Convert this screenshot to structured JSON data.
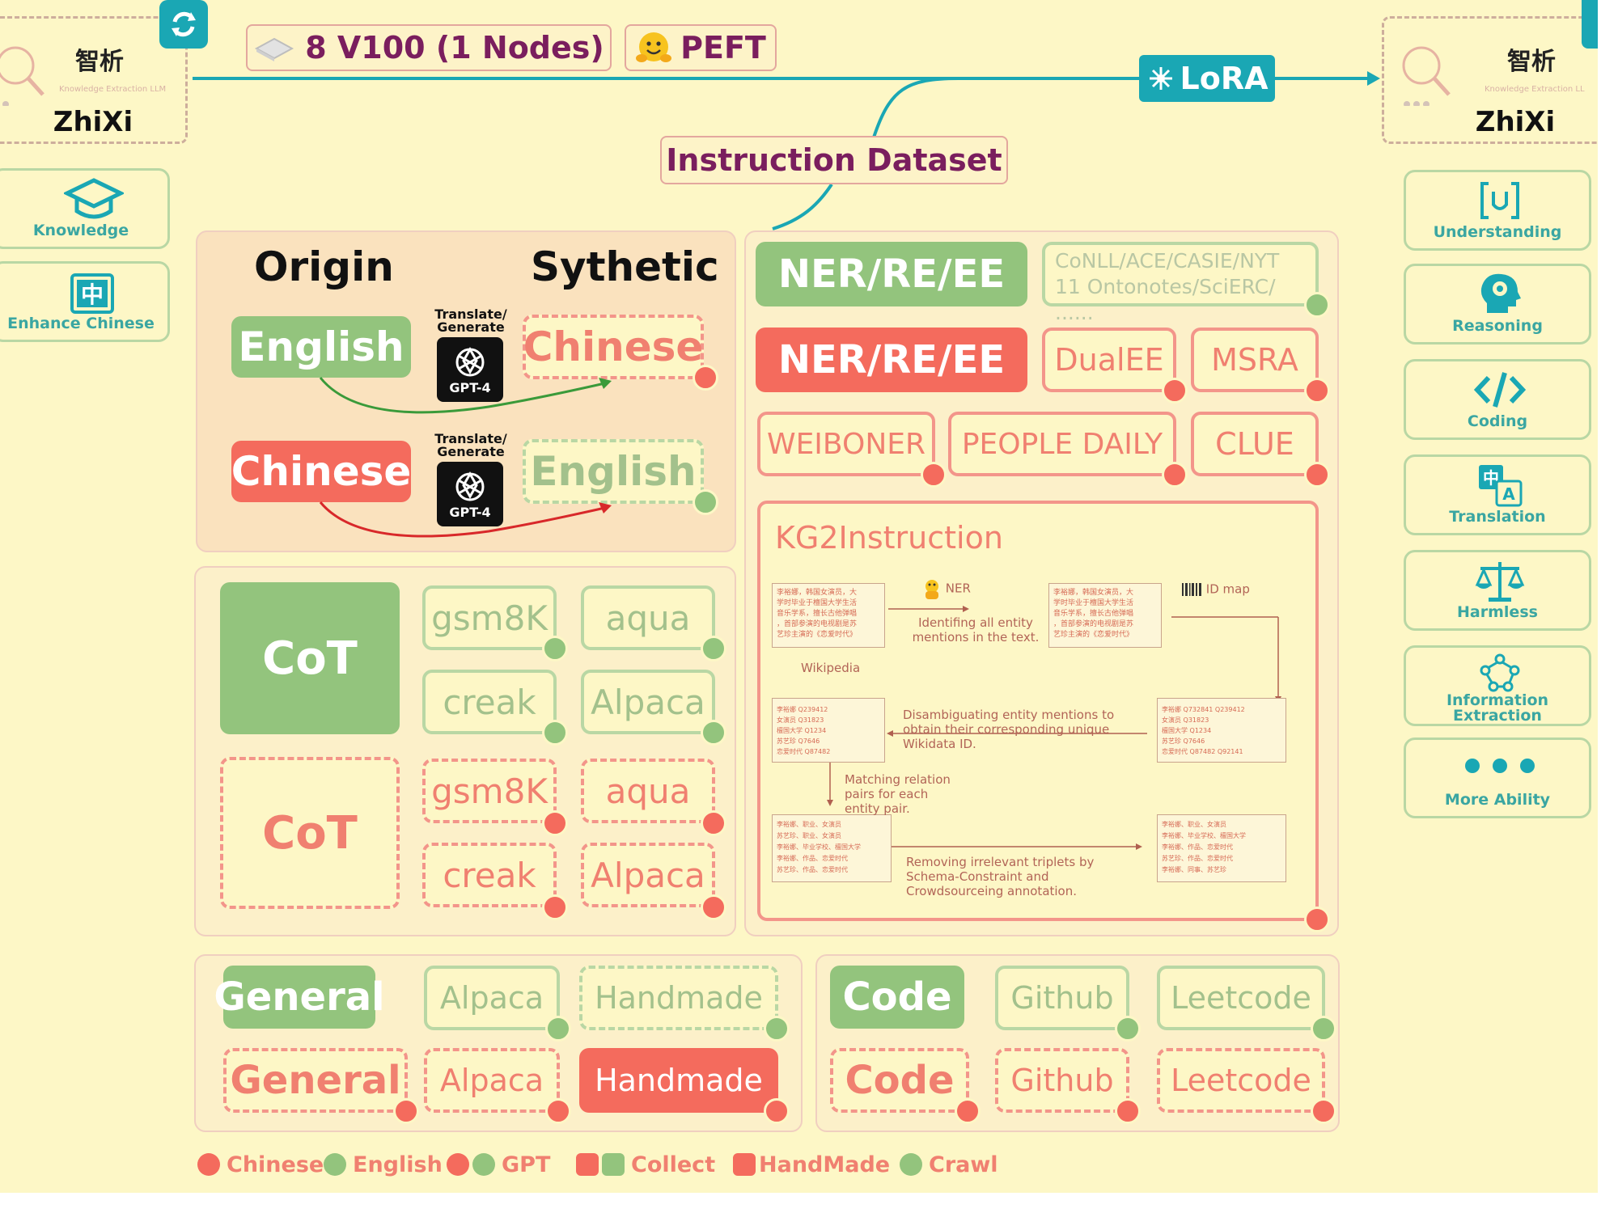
{
  "header": {
    "hardware": "8 V100 (1 Nodes)",
    "peft": "PEFT",
    "lora": "LoRA",
    "instruction_dataset": "Instruction Dataset"
  },
  "zhixi": {
    "cn": "智析",
    "sub": "Knowledge Extraction LLM",
    "sub_right": "Knowledge Extraction LL",
    "name": "ZhiXi"
  },
  "left_abilities": [
    "Knowledge",
    "Enhance Chinese"
  ],
  "right_abilities": [
    "Understanding",
    "Reasoning",
    "Coding",
    "Translation",
    "Harmless",
    "Information Extraction",
    "More Ability"
  ],
  "lang": {
    "origin": "Origin",
    "synthetic": "Sythetic",
    "english": "English",
    "chinese": "Chinese",
    "translate": "Translate/ Generate",
    "gpt4": "GPT-4"
  },
  "cot": {
    "label": "CoT",
    "datasets": [
      "gsm8K",
      "aqua",
      "creak",
      "Alpaca"
    ]
  },
  "ner": {
    "label": "NER/RE/EE",
    "english_list": "CoNLL/ACE/CASIE/NYT 11 Ontonotes/SciERC/ ......",
    "chinese_datasets": [
      "DualEE",
      "MSRA",
      "WEIBONER",
      "PEOPLE DAILY",
      "CLUE"
    ]
  },
  "kg2": {
    "title": "KG2Instruction",
    "ner_tag": "NER",
    "id_map": "ID map",
    "identify": "Identifing all entity mentions in the text.",
    "wikipedia": "Wikipedia",
    "disambiguate": "Disambiguating entity mentions to obtain their corresponding unique Wikidata ID.",
    "matching": "Matching relation pairs for each entity pair.",
    "removing": "Removing irrelevant triplets by Schema-Constraint and Crowdsourceing annotation.",
    "passage_1": "李裕娜，韩国女演员，大",
    "passage_2": "学时毕业于檀国大学生活",
    "passage_3": "音乐学系，擅长古他弹唱",
    "passage_4": "，首部参演的电视剧是苏",
    "passage_5": "艺珍主演的《恋爱时代》",
    "ids_left": [
      "李裕娜 Q239412",
      "女演员 Q31823",
      "檀国大学 Q1234",
      "苏艺珍 Q7646",
      "恋爱时代 Q87482"
    ],
    "ids_right": [
      "李裕娜 Q732841 Q239412",
      "女演员 Q31823",
      "檀国大学 Q1234",
      "苏艺珍 Q7646",
      "恋爱时代 Q87482 Q92141"
    ],
    "triples_left": [
      "李裕娜、职业、女演员",
      "苏艺珍、职业、女演员",
      "李裕娜、毕业学校、檀国大学",
      "李裕娜、作品、恋爱时代",
      "苏艺珍、作品、恋爱时代"
    ],
    "triples_right": [
      "李裕娜、职业、女演员",
      "李裕娜、毕业学校、檀国大学",
      "李裕娜、作品、恋爱时代",
      "苏艺珍、作品、恋爱时代",
      "李裕娜、同事、苏艺珍"
    ]
  },
  "general": {
    "label": "General",
    "datasets": [
      "Alpaca",
      "Handmade"
    ]
  },
  "code": {
    "label": "Code",
    "datasets": [
      "Github",
      "Leetcode"
    ]
  },
  "legend": {
    "chinese": "Chinese",
    "english": "English",
    "gpt": "GPT",
    "collect": "Collect",
    "handmade": "HandMade",
    "crawl": "Crawl"
  },
  "colors": {
    "background": "#fdf7c6",
    "green": "#93c47d",
    "red": "#f46b5d",
    "teal": "#1aa7b4",
    "purple": "#7a1e5e"
  }
}
